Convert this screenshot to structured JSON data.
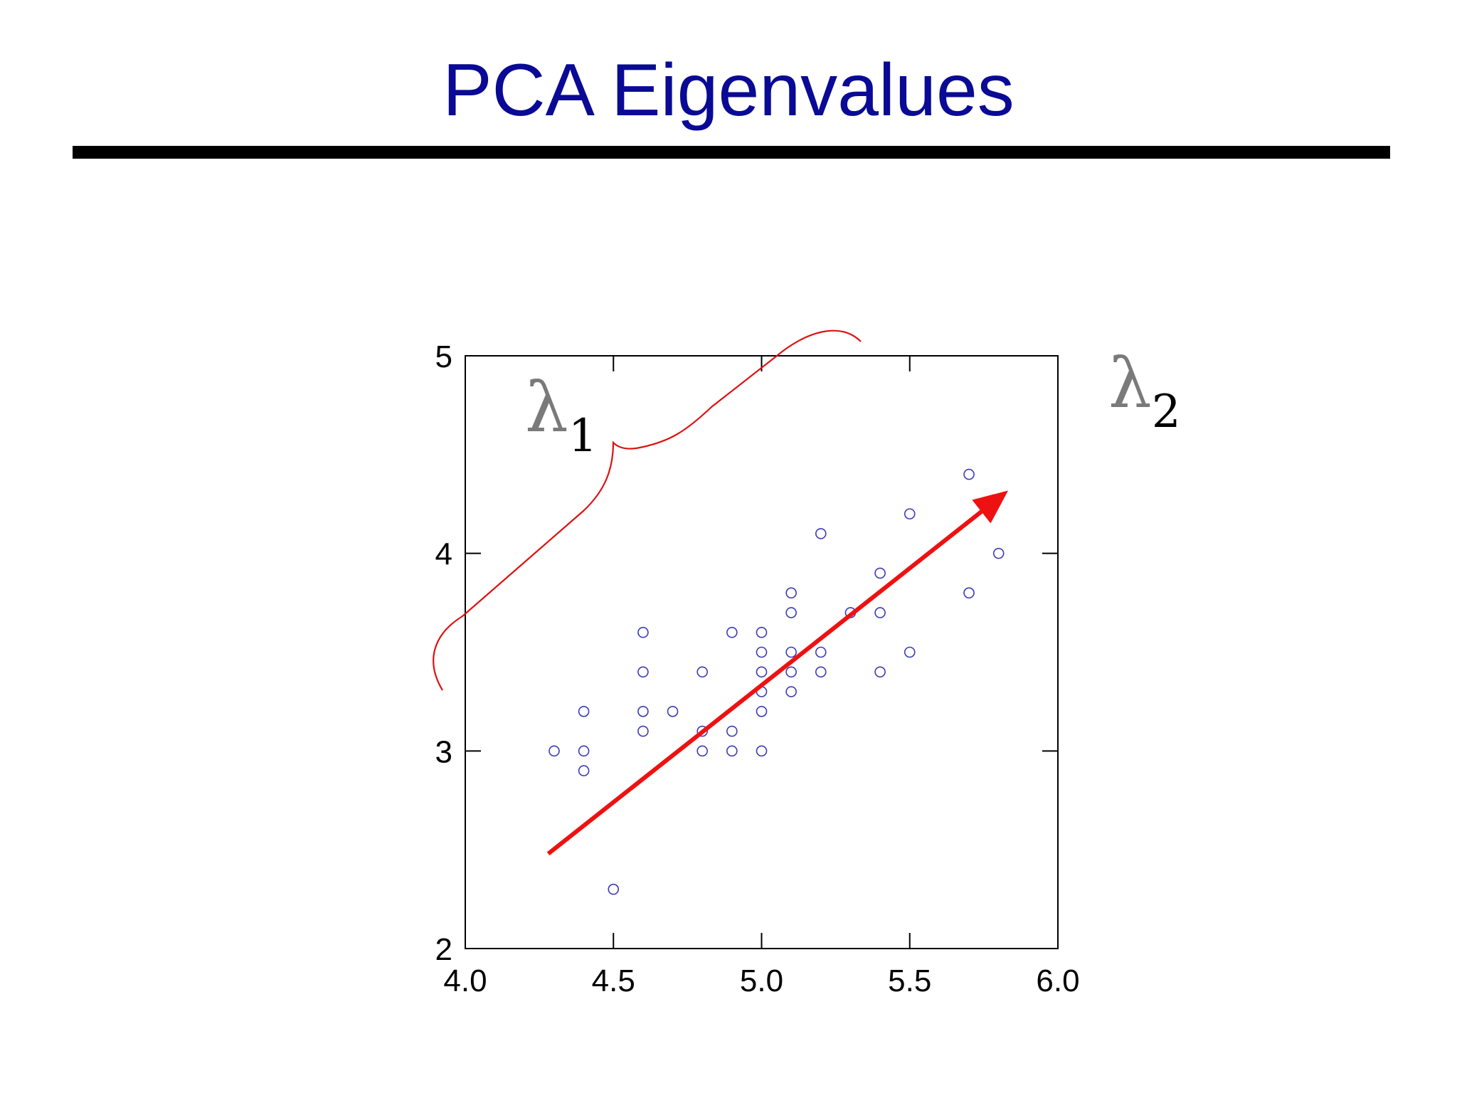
{
  "slide": {
    "title": "PCA Eigenvalues"
  },
  "colors": {
    "title": "#0a0a96",
    "points": "#3b3bb8",
    "arrow": "#ee1111",
    "brace": "#dd1111",
    "lambda": "#7a7a7a"
  },
  "chart_data": {
    "type": "scatter",
    "title": "",
    "xlabel": "",
    "ylabel": "",
    "xlim": [
      4.0,
      6.0
    ],
    "ylim": [
      2,
      5
    ],
    "x_ticks": [
      "4.0",
      "4.5",
      "5.0",
      "5.5",
      "6.0"
    ],
    "y_ticks": [
      "2",
      "3",
      "4",
      "5"
    ],
    "grid": false,
    "points": [
      [
        4.3,
        3.0
      ],
      [
        4.4,
        3.2
      ],
      [
        4.4,
        3.0
      ],
      [
        4.4,
        2.9
      ],
      [
        4.5,
        2.3
      ],
      [
        4.6,
        3.6
      ],
      [
        4.6,
        3.4
      ],
      [
        4.6,
        3.2
      ],
      [
        4.6,
        3.1
      ],
      [
        4.7,
        3.2
      ],
      [
        4.8,
        3.4
      ],
      [
        4.8,
        3.1
      ],
      [
        4.8,
        3.0
      ],
      [
        4.9,
        3.6
      ],
      [
        4.9,
        3.1
      ],
      [
        4.9,
        3.0
      ],
      [
        5.0,
        3.6
      ],
      [
        5.0,
        3.5
      ],
      [
        5.0,
        3.4
      ],
      [
        5.0,
        3.3
      ],
      [
        5.0,
        3.2
      ],
      [
        5.0,
        3.0
      ],
      [
        5.1,
        3.8
      ],
      [
        5.1,
        3.7
      ],
      [
        5.1,
        3.5
      ],
      [
        5.1,
        3.4
      ],
      [
        5.1,
        3.3
      ],
      [
        5.2,
        4.1
      ],
      [
        5.2,
        3.5
      ],
      [
        5.2,
        3.4
      ],
      [
        5.3,
        3.7
      ],
      [
        5.4,
        3.9
      ],
      [
        5.4,
        3.7
      ],
      [
        5.4,
        3.4
      ],
      [
        5.5,
        4.2
      ],
      [
        5.5,
        3.5
      ],
      [
        5.7,
        4.4
      ],
      [
        5.7,
        3.8
      ],
      [
        5.8,
        4.0
      ]
    ],
    "arrow": {
      "from": [
        4.28,
        2.48
      ],
      "to": [
        5.84,
        4.33
      ]
    },
    "annotations": [
      {
        "id": "lambda1",
        "symbol": "λ",
        "subscript": "1"
      },
      {
        "id": "lambda2",
        "symbol": "λ",
        "subscript": "2"
      }
    ]
  }
}
